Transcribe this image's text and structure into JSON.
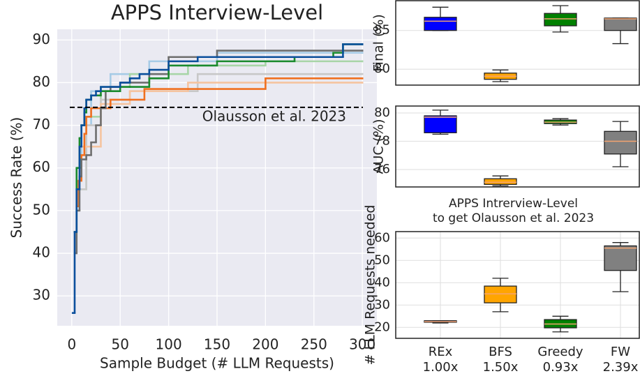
{
  "chart_data": [
    {
      "type": "line",
      "title": "APPS Interview-Level",
      "xlabel": "Sample Budget (# LLM Requests)",
      "ylabel": "Success Rate (%)",
      "xlim": [
        -15,
        315
      ],
      "ylim": [
        23,
        92.5
      ],
      "xticks": [
        0,
        50,
        100,
        150,
        200,
        250,
        300
      ],
      "yticks": [
        30,
        40,
        50,
        60,
        70,
        80,
        90
      ],
      "grid": true,
      "step": true,
      "reference_line": {
        "y": 74.2,
        "label": "Olausson et al. 2023"
      },
      "series": [
        {
          "color": "#a6cbe6",
          "x": [
            5,
            10,
            20,
            40,
            80,
            150,
            300
          ],
          "values": [
            60,
            70,
            78,
            82,
            85,
            87,
            87
          ]
        },
        {
          "color": "#a8d5a8",
          "x": [
            5,
            15,
            30,
            60,
            120,
            200,
            300
          ],
          "values": [
            55,
            72,
            79,
            82,
            84,
            85,
            85
          ]
        },
        {
          "color": "#c8c8c8",
          "x": [
            5,
            15,
            30,
            60,
            130,
            300
          ],
          "values": [
            55,
            70,
            76,
            78,
            82,
            82
          ]
        },
        {
          "color": "#f5c4a0",
          "x": [
            10,
            30,
            60,
            120,
            300
          ],
          "values": [
            65,
            75,
            78,
            80,
            80
          ]
        },
        {
          "color": "#f07020",
          "x": [
            5,
            7,
            10,
            13,
            15,
            20,
            40,
            75,
            200,
            300
          ],
          "values": [
            51,
            57,
            63,
            68,
            72,
            74,
            76,
            78.5,
            81,
            81
          ]
        },
        {
          "color": "#6e6e6e",
          "x": [
            3,
            5,
            8,
            10,
            15,
            20,
            25,
            30,
            35,
            40,
            50,
            80,
            100,
            150,
            300
          ],
          "values": [
            40,
            50,
            58,
            62,
            63,
            66,
            70,
            74,
            78,
            79,
            80,
            82,
            86,
            87.5,
            87.5
          ]
        },
        {
          "color": "#1a8a2e",
          "x": [
            3,
            5,
            8,
            10,
            13,
            15,
            20,
            30,
            50,
            60,
            80,
            100,
            130,
            150,
            230,
            270,
            280,
            300
          ],
          "values": [
            45,
            60,
            67,
            70,
            73,
            76,
            77,
            78,
            79,
            79,
            81,
            84,
            84,
            85,
            86,
            87,
            89,
            89
          ]
        },
        {
          "color": "#0b4f9c",
          "x": [
            1,
            3,
            5,
            8,
            10,
            13,
            15,
            20,
            25,
            30,
            50,
            60,
            70,
            80,
            100,
            130,
            150,
            280,
            300
          ],
          "values": [
            26,
            45,
            55,
            65,
            70,
            74,
            76,
            77,
            78,
            79,
            80,
            81,
            82,
            83,
            85,
            86,
            86,
            89,
            89
          ]
        }
      ]
    },
    {
      "type": "box",
      "ylabel": "Final (%)",
      "ylim": [
        77.95,
        88.84
      ],
      "yticks": [
        80,
        85
      ],
      "colors": [
        "#0000ff",
        "#ffa500",
        "#008000",
        "#808080"
      ],
      "boxes": [
        {
          "min": 85,
          "q1": 85,
          "median": 86.2,
          "q3": 86.7,
          "max": 88
        },
        {
          "min": 78.4,
          "q1": 78.7,
          "median": 79.1,
          "q3": 79.5,
          "max": 79.9
        },
        {
          "min": 84.8,
          "q1": 85.6,
          "median": 86.5,
          "q3": 87.2,
          "max": 88.2
        },
        {
          "min": 83.3,
          "q1": 85,
          "median": 86.5,
          "q3": 86.6,
          "max": 86.6
        }
      ]
    },
    {
      "type": "box",
      "ylabel": "AUC (%)",
      "ylim": [
        74.77,
        80.49
      ],
      "yticks": [
        76,
        78,
        80
      ],
      "colors": [
        "#0000ff",
        "#ffa500",
        "#008000",
        "#808080"
      ],
      "boxes": [
        {
          "min": 78.5,
          "q1": 78.6,
          "median": 79.7,
          "q3": 79.8,
          "max": 80.2
        },
        {
          "min": 74.85,
          "q1": 74.95,
          "median": 75.1,
          "q3": 75.35,
          "max": 75.55
        },
        {
          "min": 79.15,
          "q1": 79.25,
          "median": 79.35,
          "q3": 79.5,
          "max": 79.6
        },
        {
          "min": 76.2,
          "q1": 77.1,
          "median": 78,
          "q3": 78.7,
          "max": 79.4
        }
      ]
    },
    {
      "type": "box",
      "title": [
        "APPS Intrerview-Level",
        "to get Olausson et al. 2023"
      ],
      "ylabel": "# LLM Requests needed",
      "ylim": [
        15.1,
        62.9
      ],
      "yticks": [
        20,
        30,
        40,
        50,
        60
      ],
      "grid": true,
      "categories": [
        "REx",
        "BFS",
        "Greedy",
        "FW"
      ],
      "category_sublabels": [
        "1.00x",
        "1.50x",
        "0.93x",
        "2.39x"
      ],
      "colors": [
        "#0000ff",
        "#ffa500",
        "#008000",
        "#808080"
      ],
      "boxes": [
        {
          "min": 22,
          "q1": 22.3,
          "median": 22.6,
          "q3": 23,
          "max": 23
        },
        {
          "min": 27,
          "q1": 31,
          "median": 35,
          "q3": 38.5,
          "max": 42
        },
        {
          "min": 18,
          "q1": 19.8,
          "median": 21.5,
          "q3": 23.5,
          "max": 25
        },
        {
          "min": 36,
          "q1": 45.5,
          "median": 55.5,
          "q3": 56.5,
          "max": 58
        }
      ]
    }
  ]
}
